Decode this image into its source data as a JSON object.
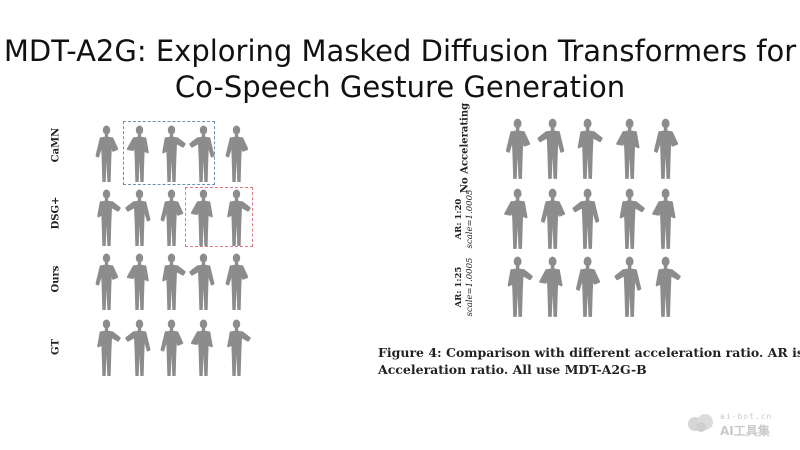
{
  "title": {
    "line1": "MDT-A2G: Exploring Masked Diffusion Transformers for",
    "line2": "Co-Speech Gesture Generation"
  },
  "left_figure": {
    "rows": [
      {
        "label": "CaMN"
      },
      {
        "label": "DSG+"
      },
      {
        "label": "Ours"
      },
      {
        "label": "GT"
      }
    ]
  },
  "right_figure": {
    "rows": [
      {
        "label": "No Accelerating"
      },
      {
        "label": "AR: 1:20",
        "sublabel": "scale=1.0005"
      },
      {
        "label": "AR: 1:25",
        "sublabel": "scale=1.0005"
      }
    ]
  },
  "caption": {
    "line1": "Figure 4: Comparison with different acceleration ratio. AR is",
    "line2": "Acceleration ratio. All use MDT-A2G-B"
  },
  "watermark": {
    "url": "ai-bot.cn",
    "text": "AI工具集"
  },
  "colors": {
    "figure_gray": "#8c8c8c",
    "blue_box": "#6b8fb0",
    "red_box": "#d97a85"
  }
}
